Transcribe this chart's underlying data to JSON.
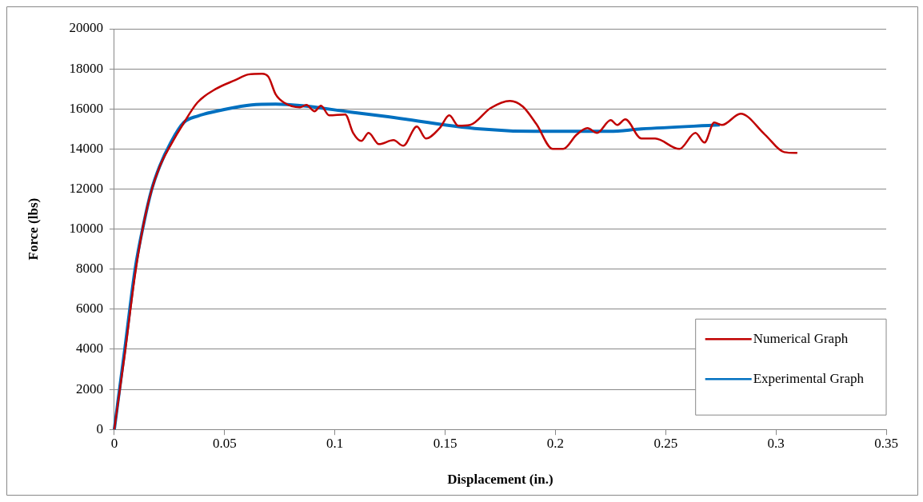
{
  "chart_data": {
    "type": "line",
    "xlabel": "Displacement (in.)",
    "ylabel": "Force (lbs)",
    "xlim": [
      0,
      0.35
    ],
    "xticks": [
      0,
      0.05,
      0.1,
      0.15,
      0.2,
      0.25,
      0.3,
      0.35
    ],
    "ylim": [
      0,
      20000
    ],
    "yticks": [
      0,
      2000,
      4000,
      6000,
      8000,
      10000,
      12000,
      14000,
      16000,
      18000,
      20000
    ],
    "grid": "y",
    "legend": "bottom right",
    "marker": "none",
    "line_style": "solid",
    "series": [
      {
        "name": "Numerical Graph",
        "color": "#c00000",
        "x": [
          0,
          0.0048,
          0.0095,
          0.0132,
          0.0168,
          0.0205,
          0.0256,
          0.0315,
          0.0377,
          0.0461,
          0.0549,
          0.0608,
          0.067,
          0.0699,
          0.0732,
          0.0769,
          0.0842,
          0.0871,
          0.0908,
          0.0937,
          0.0974,
          0.1047,
          0.1083,
          0.112,
          0.1153,
          0.12,
          0.1266,
          0.131,
          0.1372,
          0.1413,
          0.1475,
          0.1519,
          0.156,
          0.1614,
          0.1706,
          0.1794,
          0.1852,
          0.1914,
          0.1988,
          0.2035,
          0.2097,
          0.2145,
          0.2189,
          0.2251,
          0.228,
          0.2317,
          0.239,
          0.2452,
          0.2562,
          0.2635,
          0.2676,
          0.272,
          0.2756,
          0.284,
          0.295,
          0.3038,
          0.3097
        ],
        "values": [
          0,
          3800,
          7800,
          10200,
          11900,
          13100,
          14200,
          15300,
          16320,
          17000,
          17440,
          17720,
          17760,
          17600,
          16720,
          16320,
          16080,
          16200,
          15880,
          16160,
          15680,
          15720,
          14800,
          14400,
          14800,
          14240,
          14440,
          14160,
          15120,
          14520,
          15040,
          15680,
          15160,
          15200,
          16040,
          16400,
          16120,
          15240,
          14000,
          14000,
          14720,
          15040,
          14800,
          15440,
          15200,
          15480,
          14520,
          14520,
          14000,
          14800,
          14320,
          15320,
          15200,
          15760,
          14720,
          13840,
          13800
        ]
      },
      {
        "name": "Experimental Graph",
        "color": "#0070c0",
        "x": [
          0,
          0.0048,
          0.0095,
          0.0132,
          0.0168,
          0.0205,
          0.0256,
          0.0315,
          0.0377,
          0.0512,
          0.0622,
          0.0732,
          0.0853,
          0.1072,
          0.1219,
          0.1658,
          0.1903,
          0.2244,
          0.239,
          0.2745
        ],
        "values": [
          0,
          4040,
          8040,
          10200,
          11920,
          13120,
          14320,
          15320,
          15640,
          16000,
          16200,
          16240,
          16160,
          15840,
          15640,
          15000,
          14880,
          14880,
          15000,
          15200
        ]
      }
    ]
  }
}
